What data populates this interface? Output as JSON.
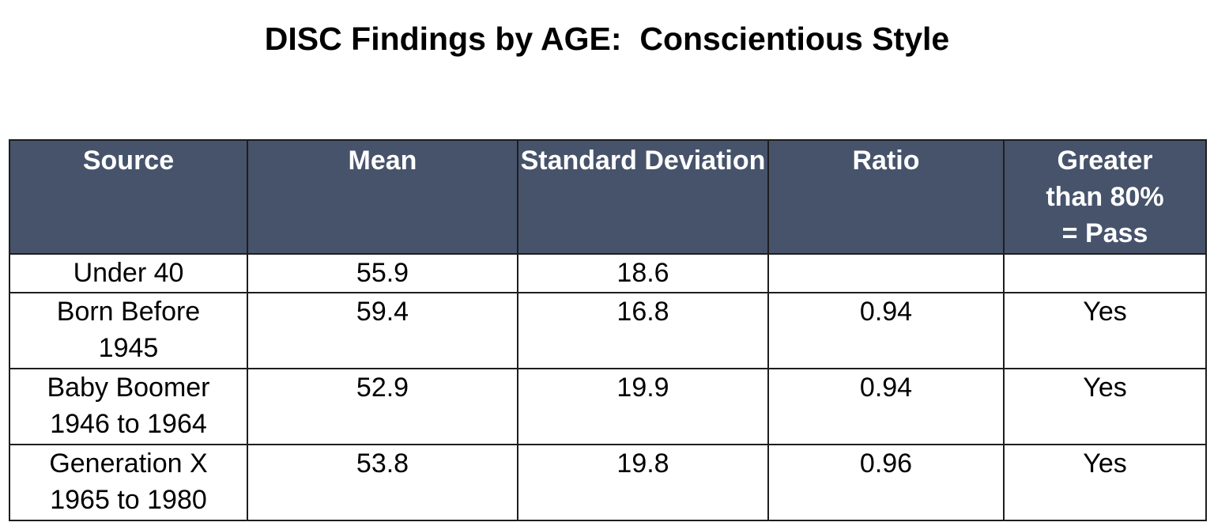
{
  "title": "DISC Findings by AGE:  Conscientious Style",
  "table": {
    "headers": [
      "Source",
      "Mean",
      "Standard Deviation",
      "Ratio",
      "Greater than 80% = Pass"
    ],
    "rows": [
      [
        "Under 40",
        55.9,
        18.6,
        null,
        null
      ],
      [
        "Born Before 1945",
        59.4,
        16.8,
        0.94,
        "Yes"
      ],
      [
        "Baby Boomer 1946 to 1964",
        52.9,
        19.9,
        0.94,
        "Yes"
      ],
      [
        "Generation X 1965 to 1980",
        53.8,
        19.8,
        0.96,
        "Yes"
      ]
    ]
  }
}
